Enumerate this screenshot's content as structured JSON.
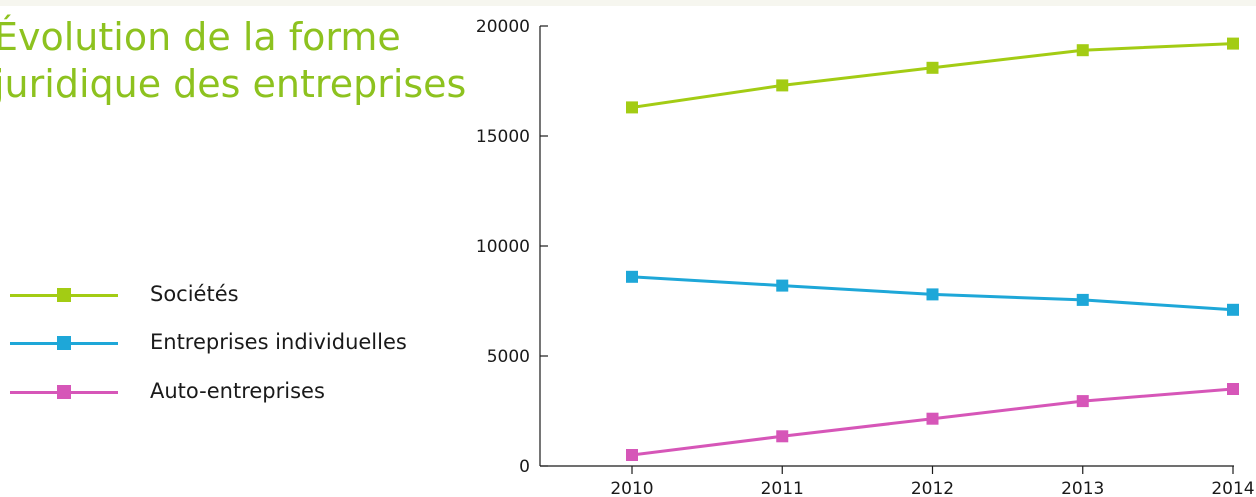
{
  "title": "Évolution de la forme\njuridique des entreprises",
  "colors": {
    "title": "#8dc21f",
    "background_bar": "#f6f6ef",
    "axis": "#1a1a1a"
  },
  "legend": [
    {
      "label": "Sociétés",
      "color": "#a3cc14"
    },
    {
      "label": "Entreprises individuelles",
      "color": "#1ea7d8"
    },
    {
      "label": "Auto-entreprises",
      "color": "#d656b8"
    }
  ],
  "chart_data": {
    "type": "line",
    "x": [
      2010,
      2011,
      2012,
      2013,
      2014
    ],
    "xticks": [
      "2010",
      "2011",
      "2012",
      "2013",
      "2014"
    ],
    "yticks": [
      "0",
      "5000",
      "10000",
      "15000",
      "20000"
    ],
    "ylim": [
      0,
      20000
    ],
    "grid": false,
    "legend_position": "left",
    "marker": "square",
    "series": [
      {
        "name": "Sociétés",
        "color": "#a3cc14",
        "values": [
          16300,
          17300,
          18100,
          18900,
          19200
        ]
      },
      {
        "name": "Entreprises individuelles",
        "color": "#1ea7d8",
        "values": [
          8600,
          8200,
          7800,
          7550,
          7100
        ]
      },
      {
        "name": "Auto-entreprises",
        "color": "#d656b8",
        "values": [
          500,
          1350,
          2150,
          2950,
          3500
        ]
      }
    ]
  }
}
